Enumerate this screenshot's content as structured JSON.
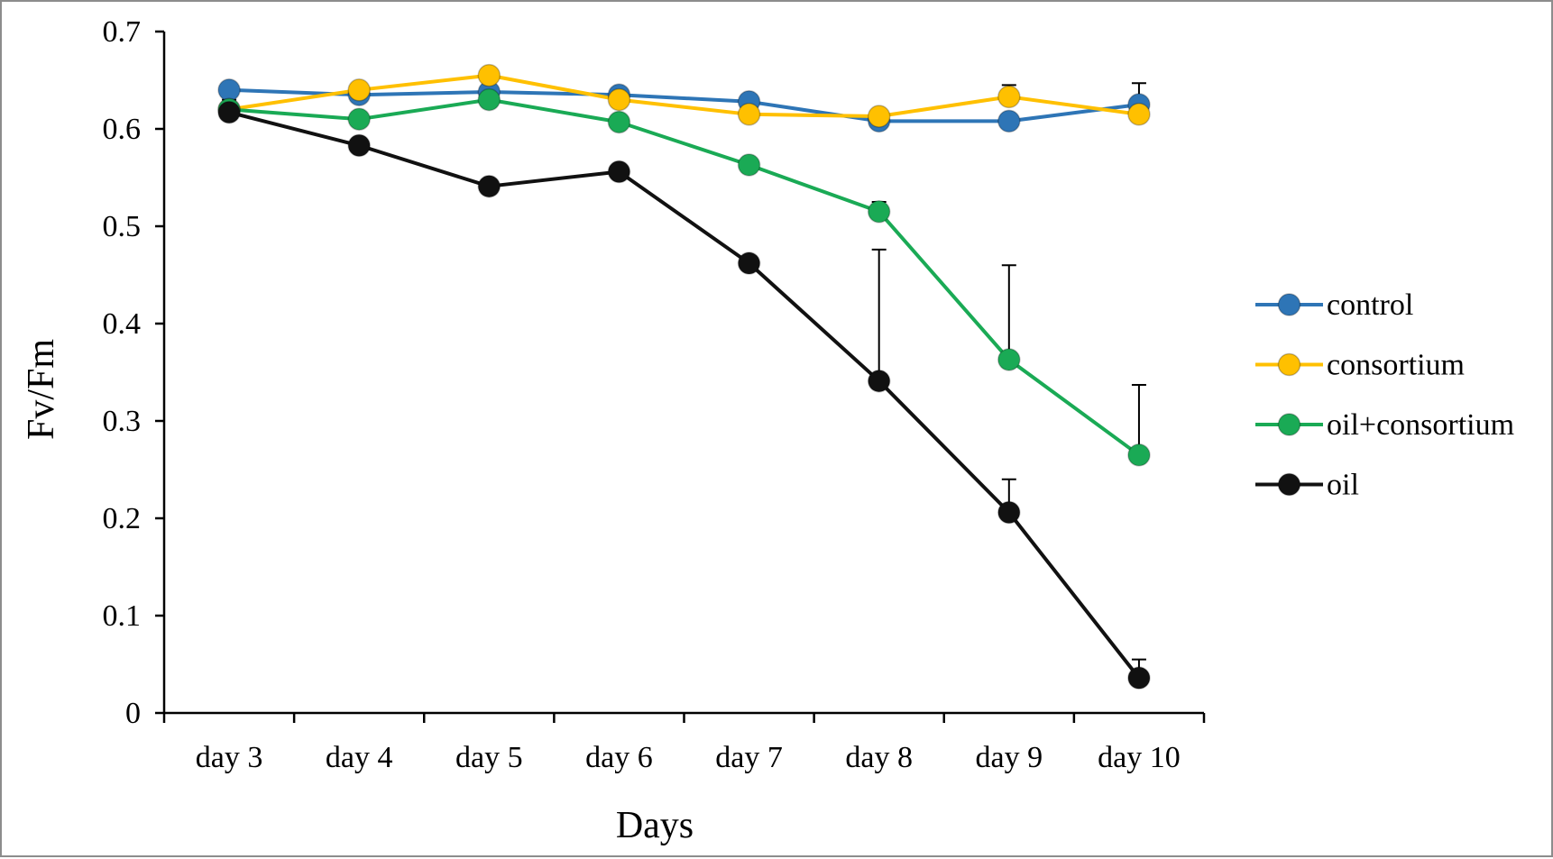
{
  "chart_data": {
    "type": "line",
    "title": "",
    "xlabel": "Days",
    "ylabel": "Fv/Fm",
    "ylim": [
      0,
      0.7
    ],
    "yticks": [
      "0",
      "0.1",
      "0.2",
      "0.3",
      "0.4",
      "0.5",
      "0.6",
      "0.7"
    ],
    "categories": [
      "day 3",
      "day 4",
      "day 5",
      "day 6",
      "day 7",
      "day 8",
      "day 9",
      "day 10"
    ],
    "legend_position": "right",
    "series": [
      {
        "name": "control",
        "color": "#2e75b6",
        "values": [
          0.64,
          0.635,
          0.638,
          0.635,
          0.628,
          0.608,
          0.608,
          0.625
        ],
        "errors": [
          0,
          0,
          0,
          0,
          0,
          0,
          0,
          0.022
        ]
      },
      {
        "name": "consortium",
        "color": "#ffc000",
        "values": [
          0.62,
          0.64,
          0.655,
          0.63,
          0.615,
          0.613,
          0.633,
          0.615
        ],
        "errors": [
          0,
          0,
          0,
          0,
          0,
          0,
          0.012,
          0
        ]
      },
      {
        "name": "oil+consortium",
        "color": "#1aaa55",
        "values": [
          0.62,
          0.61,
          0.63,
          0.607,
          0.563,
          0.515,
          0.363,
          0.265
        ],
        "errors": [
          0,
          0,
          0,
          0,
          0,
          0.01,
          0.097,
          0.072
        ]
      },
      {
        "name": "oil",
        "color": "#111111",
        "values": [
          0.617,
          0.583,
          0.541,
          0.556,
          0.462,
          0.341,
          0.206,
          0.036
        ],
        "errors": [
          0.013,
          0,
          0,
          0,
          0,
          0.135,
          0.034,
          0.019
        ]
      }
    ]
  }
}
